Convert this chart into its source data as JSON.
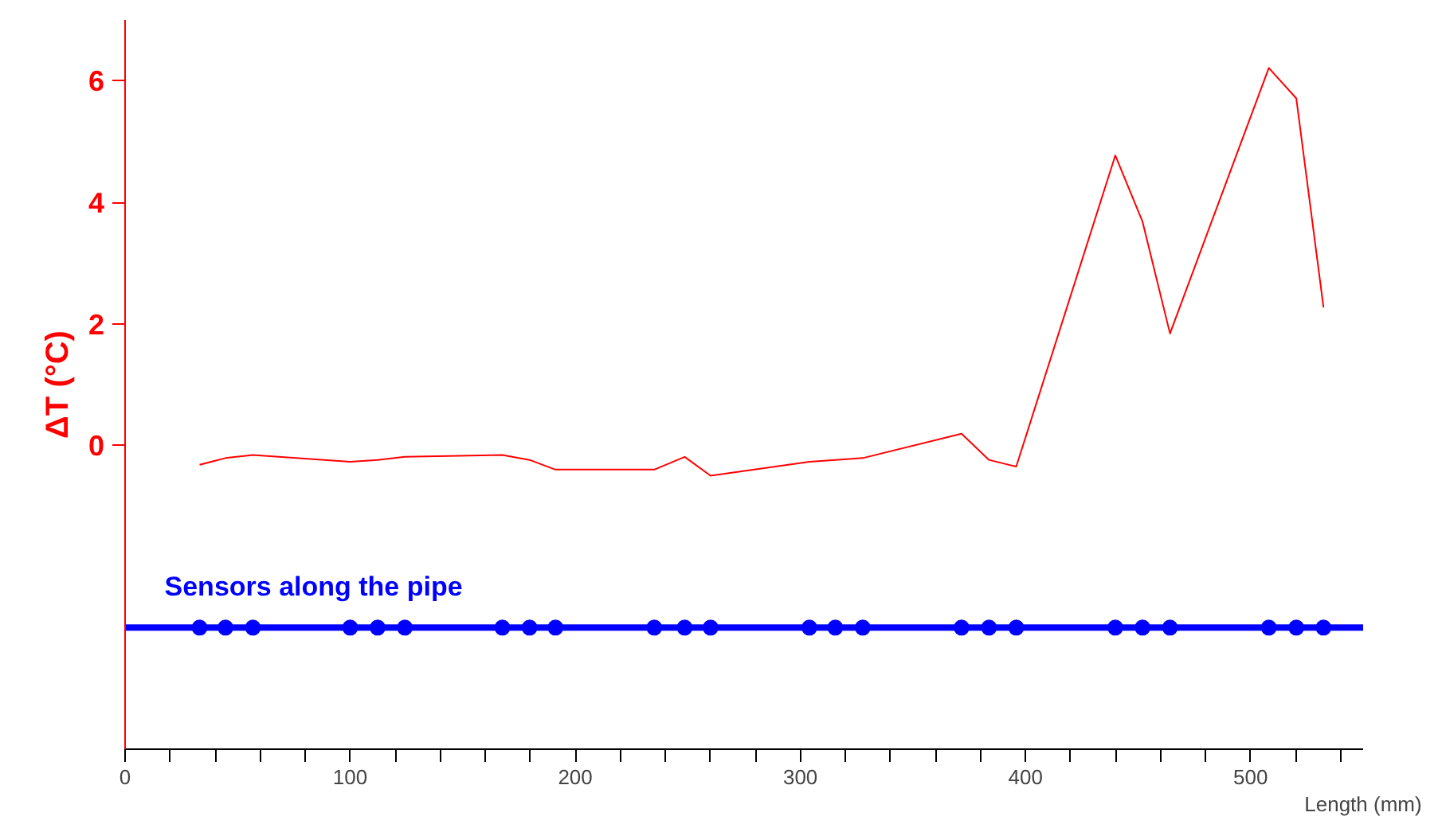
{
  "chart_data": {
    "type": "line",
    "ylabel": "ΔT (°C)",
    "xlabel": "Length (mm)",
    "xlim": [
      0,
      550
    ],
    "ylim": [
      -5,
      7
    ],
    "yticks": [
      0,
      2,
      4,
      6
    ],
    "grid": false,
    "legend": false,
    "xticks": [
      0,
      {
        "value": 20,
        "label": null
      },
      {
        "value": 40,
        "label": null
      },
      {
        "value": 60,
        "label": null
      },
      {
        "value": 80,
        "label": null
      },
      100,
      {
        "value": 120,
        "label": null
      },
      {
        "value": 140,
        "label": null
      },
      {
        "value": 160,
        "label": null
      },
      {
        "value": 180,
        "label": null
      },
      200,
      {
        "value": 220,
        "label": null
      },
      {
        "value": 240,
        "label": null
      },
      {
        "value": 260,
        "label": null
      },
      {
        "value": 280,
        "label": null
      },
      300,
      {
        "value": 320,
        "label": null
      },
      {
        "value": 340,
        "label": null
      },
      {
        "value": 360,
        "label": null
      },
      {
        "value": 380,
        "label": null
      },
      400,
      {
        "value": 420,
        "label": null
      },
      {
        "value": 440,
        "label": null
      },
      {
        "value": 460,
        "label": null
      },
      {
        "value": 480,
        "label": null
      },
      500,
      {
        "value": 520,
        "label": null
      },
      {
        "value": 540,
        "label": null
      }
    ],
    "x": [
      33.1,
      44.6,
      56.8,
      100,
      112.2,
      124.3,
      167.6,
      179.7,
      191.2,
      235.1,
      248.6,
      260.1,
      304,
      315.5,
      327.7,
      371.6,
      383.8,
      395.9,
      439.9,
      452,
      464.2,
      508.1,
      520.3,
      532.4
    ],
    "series": [
      {
        "color": "#ff0000",
        "values": [
          -0.32,
          -0.21,
          -0.16,
          -0.27,
          -0.24,
          -0.19,
          -0.16,
          -0.24,
          -0.4,
          -0.4,
          -0.19,
          -0.5,
          -0.27,
          -0.24,
          -0.21,
          0.19,
          -0.24,
          -0.35,
          4.77,
          3.68,
          1.84,
          6.21,
          5.71,
          2.27
        ]
      },
      {
        "type": "line",
        "color": "#0000ff",
        "x": [
          0,
          550
        ],
        "values": [
          -3,
          -3
        ]
      },
      {
        "type": "scatter",
        "marker": "circle",
        "name": "Sensors along the pipe",
        "color": "#0000ff",
        "values": [
          -3,
          -3,
          -3,
          -3,
          -3,
          -3,
          -3,
          -3,
          -3,
          -3,
          -3,
          -3,
          -3,
          -3,
          -3,
          -3,
          -3,
          -3,
          -3,
          -3,
          -3,
          -3,
          -3,
          -3
        ]
      }
    ]
  }
}
